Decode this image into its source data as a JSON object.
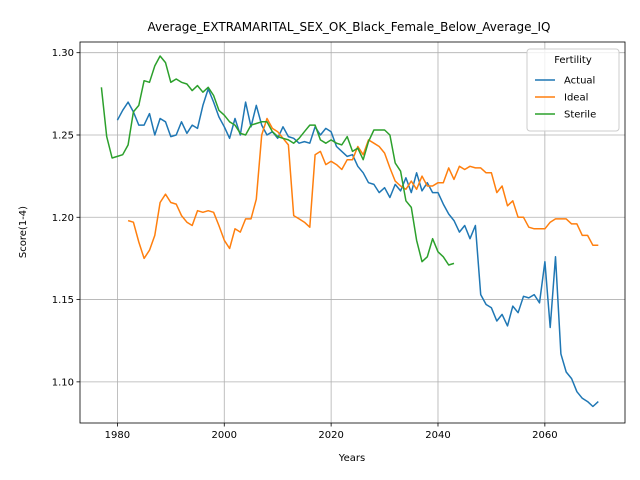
{
  "chart_data": {
    "type": "line",
    "title": "Average_EXTRAMARITAL_SEX_OK_Black_Female_Below_Average_IQ",
    "xlabel": "Years",
    "ylabel": "Score(1-4)",
    "xlim": [
      1973,
      2075
    ],
    "ylim": [
      1.075,
      1.3065
    ],
    "xticks": [
      1980,
      2000,
      2020,
      2040,
      2060
    ],
    "yticks": [
      1.1,
      1.15,
      1.2,
      1.25,
      1.3
    ],
    "xtick_labels": [
      "1980",
      "2000",
      "2020",
      "2040",
      "2060"
    ],
    "ytick_labels": [
      "1.10",
      "1.15",
      "1.20",
      "1.25",
      "1.30"
    ],
    "grid": true,
    "legend": {
      "title": "Fertility",
      "position": "top-right"
    },
    "series": [
      {
        "name": "Actual",
        "color": "#1f77b4",
        "x": [
          1980,
          1981,
          1982,
          1983,
          1984,
          1985,
          1986,
          1987,
          1988,
          1989,
          1990,
          1991,
          1992,
          1993,
          1994,
          1995,
          1996,
          1997,
          1998,
          1999,
          2000,
          2001,
          2002,
          2003,
          2004,
          2005,
          2006,
          2007,
          2008,
          2009,
          2010,
          2011,
          2012,
          2013,
          2014,
          2015,
          2016,
          2017,
          2018,
          2019,
          2020,
          2021,
          2022,
          2023,
          2024,
          2025,
          2026,
          2027,
          2028,
          2029,
          2030,
          2031,
          2032,
          2033,
          2034,
          2035,
          2036,
          2037,
          2038,
          2039,
          2040,
          2041,
          2042,
          2043,
          2044,
          2045,
          2046,
          2047,
          2048,
          2049,
          2050,
          2051,
          2052,
          2053,
          2054,
          2055,
          2056,
          2057,
          2058,
          2059,
          2060,
          2061,
          2062,
          2063,
          2064,
          2065,
          2066,
          2067,
          2068,
          2069,
          2070
        ],
        "y": [
          1.259,
          1.265,
          1.27,
          1.264,
          1.256,
          1.256,
          1.263,
          1.25,
          1.26,
          1.258,
          1.249,
          1.25,
          1.258,
          1.251,
          1.256,
          1.254,
          1.268,
          1.278,
          1.27,
          1.261,
          1.255,
          1.248,
          1.26,
          1.25,
          1.27,
          1.255,
          1.268,
          1.256,
          1.25,
          1.252,
          1.248,
          1.255,
          1.249,
          1.248,
          1.245,
          1.246,
          1.245,
          1.255,
          1.25,
          1.254,
          1.252,
          1.243,
          1.24,
          1.237,
          1.238,
          1.231,
          1.227,
          1.221,
          1.22,
          1.215,
          1.218,
          1.212,
          1.22,
          1.216,
          1.224,
          1.215,
          1.227,
          1.216,
          1.221,
          1.215,
          1.215,
          1.208,
          1.202,
          1.198,
          1.191,
          1.195,
          1.187,
          1.195,
          1.153,
          1.147,
          1.145,
          1.137,
          1.141,
          1.134,
          1.146,
          1.142,
          1.152,
          1.151,
          1.153,
          1.148,
          1.173,
          1.133,
          1.176,
          1.117,
          1.106,
          1.102,
          1.094,
          1.09,
          1.088,
          1.085,
          1.088
        ]
      },
      {
        "name": "Ideal",
        "color": "#ff7f0e",
        "x": [
          1982,
          1983,
          1984,
          1985,
          1986,
          1987,
          1988,
          1989,
          1990,
          1991,
          1992,
          1993,
          1994,
          1995,
          1996,
          1997,
          1998,
          1999,
          2000,
          2001,
          2002,
          2003,
          2004,
          2005,
          2006,
          2007,
          2008,
          2009,
          2010,
          2011,
          2012,
          2013,
          2014,
          2015,
          2016,
          2017,
          2018,
          2019,
          2020,
          2021,
          2022,
          2023,
          2024,
          2025,
          2026,
          2027,
          2028,
          2029,
          2030,
          2031,
          2032,
          2033,
          2034,
          2035,
          2036,
          2037,
          2038,
          2039,
          2040,
          2041,
          2042,
          2043,
          2044,
          2045,
          2046,
          2047,
          2048,
          2049,
          2050,
          2051,
          2052,
          2053,
          2054,
          2055,
          2056,
          2057,
          2058,
          2059,
          2060,
          2061,
          2062,
          2063,
          2064,
          2065,
          2066,
          2067,
          2068,
          2069,
          2070
        ],
        "y": [
          1.198,
          1.197,
          1.185,
          1.175,
          1.18,
          1.189,
          1.209,
          1.214,
          1.209,
          1.208,
          1.201,
          1.197,
          1.195,
          1.204,
          1.203,
          1.204,
          1.203,
          1.195,
          1.186,
          1.181,
          1.193,
          1.191,
          1.199,
          1.199,
          1.211,
          1.25,
          1.26,
          1.254,
          1.252,
          1.248,
          1.244,
          1.201,
          1.199,
          1.197,
          1.194,
          1.238,
          1.24,
          1.232,
          1.234,
          1.232,
          1.229,
          1.235,
          1.235,
          1.243,
          1.238,
          1.247,
          1.245,
          1.243,
          1.239,
          1.23,
          1.222,
          1.219,
          1.217,
          1.222,
          1.217,
          1.225,
          1.219,
          1.219,
          1.221,
          1.221,
          1.23,
          1.223,
          1.231,
          1.229,
          1.231,
          1.23,
          1.23,
          1.227,
          1.227,
          1.215,
          1.219,
          1.207,
          1.21,
          1.2,
          1.2,
          1.194,
          1.193,
          1.193,
          1.193,
          1.197,
          1.199,
          1.199,
          1.199,
          1.196,
          1.196,
          1.189,
          1.189,
          1.183,
          1.183
        ]
      },
      {
        "name": "Sterile",
        "color": "#2ca02c",
        "x": [
          1977,
          1978,
          1979,
          1980,
          1981,
          1982,
          1983,
          1984,
          1985,
          1986,
          1987,
          1988,
          1989,
          1990,
          1991,
          1992,
          1993,
          1994,
          1995,
          1996,
          1997,
          1998,
          1999,
          2000,
          2001,
          2002,
          2003,
          2004,
          2005,
          2006,
          2007,
          2008,
          2009,
          2010,
          2011,
          2012,
          2013,
          2014,
          2015,
          2016,
          2017,
          2018,
          2019,
          2020,
          2021,
          2022,
          2023,
          2024,
          2025,
          2026,
          2027,
          2028,
          2029,
          2030,
          2031,
          2032,
          2033,
          2034,
          2035,
          2036,
          2037,
          2038,
          2039,
          2040,
          2041,
          2042,
          2043
        ],
        "y": [
          1.279,
          1.249,
          1.236,
          1.237,
          1.238,
          1.244,
          1.264,
          1.268,
          1.283,
          1.282,
          1.292,
          1.298,
          1.294,
          1.282,
          1.284,
          1.282,
          1.281,
          1.277,
          1.28,
          1.276,
          1.279,
          1.274,
          1.265,
          1.262,
          1.258,
          1.256,
          1.251,
          1.25,
          1.256,
          1.257,
          1.258,
          1.258,
          1.252,
          1.249,
          1.248,
          1.247,
          1.245,
          1.248,
          1.252,
          1.256,
          1.256,
          1.247,
          1.245,
          1.247,
          1.245,
          1.244,
          1.249,
          1.24,
          1.242,
          1.235,
          1.246,
          1.253,
          1.253,
          1.253,
          1.25,
          1.233,
          1.228,
          1.21,
          1.206,
          1.186,
          1.173,
          1.176,
          1.187,
          1.179,
          1.176,
          1.171,
          1.172
        ]
      }
    ]
  }
}
